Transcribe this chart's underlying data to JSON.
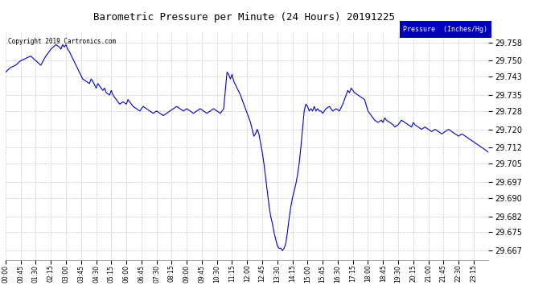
{
  "title": "Barometric Pressure per Minute (24 Hours) 20191225",
  "copyright_text": "Copyright 2019 Cartronics.com",
  "legend_label": "Pressure  (Inches/Hg)",
  "line_color": "#0000cc",
  "legend_bg": "#0000bb",
  "legend_text_color": "#ffffff",
  "bg_color": "#ffffff",
  "grid_color": "#cccccc",
  "y_ticks": [
    29.667,
    29.675,
    29.682,
    29.69,
    29.697,
    29.705,
    29.712,
    29.72,
    29.728,
    29.735,
    29.743,
    29.75,
    29.758
  ],
  "ylim": [
    29.663,
    29.762
  ],
  "x_tick_labels": [
    "00:00",
    "00:45",
    "01:30",
    "02:15",
    "03:00",
    "03:45",
    "04:30",
    "05:15",
    "06:00",
    "06:45",
    "07:30",
    "08:15",
    "09:00",
    "09:45",
    "10:30",
    "11:15",
    "12:00",
    "12:45",
    "13:30",
    "14:15",
    "15:00",
    "15:45",
    "16:30",
    "17:15",
    "18:00",
    "18:45",
    "19:30",
    "20:15",
    "21:00",
    "21:45",
    "22:30",
    "23:15"
  ],
  "x_tick_positions": [
    0,
    45,
    90,
    135,
    180,
    225,
    270,
    315,
    360,
    405,
    450,
    495,
    540,
    585,
    630,
    675,
    720,
    765,
    810,
    855,
    900,
    945,
    990,
    1035,
    1080,
    1125,
    1170,
    1215,
    1260,
    1305,
    1350,
    1395
  ],
  "xlim": [
    0,
    1439
  ],
  "pressure_data": [
    [
      0,
      29.745
    ],
    [
      15,
      29.747
    ],
    [
      30,
      29.748
    ],
    [
      45,
      29.75
    ],
    [
      60,
      29.751
    ],
    [
      75,
      29.752
    ],
    [
      90,
      29.75
    ],
    [
      105,
      29.748
    ],
    [
      120,
      29.752
    ],
    [
      135,
      29.755
    ],
    [
      150,
      29.757
    ],
    [
      160,
      29.756
    ],
    [
      165,
      29.755
    ],
    [
      170,
      29.757
    ],
    [
      175,
      29.756
    ],
    [
      180,
      29.757
    ],
    [
      185,
      29.755
    ],
    [
      190,
      29.754
    ],
    [
      200,
      29.751
    ],
    [
      210,
      29.748
    ],
    [
      220,
      29.745
    ],
    [
      230,
      29.742
    ],
    [
      240,
      29.741
    ],
    [
      250,
      29.74
    ],
    [
      255,
      29.742
    ],
    [
      260,
      29.741
    ],
    [
      270,
      29.738
    ],
    [
      275,
      29.74
    ],
    [
      280,
      29.739
    ],
    [
      290,
      29.737
    ],
    [
      295,
      29.738
    ],
    [
      300,
      29.736
    ],
    [
      310,
      29.735
    ],
    [
      315,
      29.737
    ],
    [
      320,
      29.735
    ],
    [
      330,
      29.733
    ],
    [
      340,
      29.731
    ],
    [
      350,
      29.732
    ],
    [
      360,
      29.731
    ],
    [
      365,
      29.733
    ],
    [
      370,
      29.732
    ],
    [
      380,
      29.73
    ],
    [
      390,
      29.729
    ],
    [
      400,
      29.728
    ],
    [
      410,
      29.73
    ],
    [
      420,
      29.729
    ],
    [
      430,
      29.728
    ],
    [
      440,
      29.727
    ],
    [
      450,
      29.728
    ],
    [
      460,
      29.727
    ],
    [
      470,
      29.726
    ],
    [
      480,
      29.727
    ],
    [
      490,
      29.728
    ],
    [
      500,
      29.729
    ],
    [
      510,
      29.73
    ],
    [
      520,
      29.729
    ],
    [
      530,
      29.728
    ],
    [
      540,
      29.729
    ],
    [
      550,
      29.728
    ],
    [
      560,
      29.727
    ],
    [
      570,
      29.728
    ],
    [
      580,
      29.729
    ],
    [
      590,
      29.728
    ],
    [
      600,
      29.727
    ],
    [
      610,
      29.728
    ],
    [
      620,
      29.729
    ],
    [
      630,
      29.728
    ],
    [
      640,
      29.727
    ],
    [
      650,
      29.729
    ],
    [
      660,
      29.745
    ],
    [
      665,
      29.744
    ],
    [
      670,
      29.742
    ],
    [
      675,
      29.744
    ],
    [
      680,
      29.741
    ],
    [
      690,
      29.738
    ],
    [
      700,
      29.735
    ],
    [
      710,
      29.731
    ],
    [
      720,
      29.727
    ],
    [
      730,
      29.723
    ],
    [
      735,
      29.72
    ],
    [
      740,
      29.717
    ],
    [
      745,
      29.718
    ],
    [
      750,
      29.72
    ],
    [
      755,
      29.718
    ],
    [
      760,
      29.714
    ],
    [
      765,
      29.71
    ],
    [
      770,
      29.705
    ],
    [
      775,
      29.699
    ],
    [
      780,
      29.693
    ],
    [
      785,
      29.687
    ],
    [
      790,
      29.682
    ],
    [
      795,
      29.679
    ],
    [
      800,
      29.675
    ],
    [
      805,
      29.672
    ],
    [
      810,
      29.669
    ],
    [
      815,
      29.668
    ],
    [
      820,
      29.668
    ],
    [
      825,
      29.667
    ],
    [
      830,
      29.668
    ],
    [
      835,
      29.67
    ],
    [
      840,
      29.675
    ],
    [
      845,
      29.681
    ],
    [
      850,
      29.686
    ],
    [
      855,
      29.69
    ],
    [
      860,
      29.693
    ],
    [
      865,
      29.696
    ],
    [
      870,
      29.7
    ],
    [
      875,
      29.705
    ],
    [
      880,
      29.712
    ],
    [
      885,
      29.72
    ],
    [
      890,
      29.728
    ],
    [
      895,
      29.731
    ],
    [
      900,
      29.73
    ],
    [
      905,
      29.728
    ],
    [
      910,
      29.729
    ],
    [
      915,
      29.728
    ],
    [
      920,
      29.73
    ],
    [
      925,
      29.728
    ],
    [
      930,
      29.729
    ],
    [
      935,
      29.728
    ],
    [
      940,
      29.728
    ],
    [
      945,
      29.727
    ],
    [
      955,
      29.729
    ],
    [
      965,
      29.73
    ],
    [
      975,
      29.728
    ],
    [
      985,
      29.729
    ],
    [
      995,
      29.728
    ],
    [
      1005,
      29.731
    ],
    [
      1010,
      29.733
    ],
    [
      1015,
      29.735
    ],
    [
      1020,
      29.737
    ],
    [
      1025,
      29.736
    ],
    [
      1030,
      29.738
    ],
    [
      1035,
      29.737
    ],
    [
      1040,
      29.736
    ],
    [
      1050,
      29.735
    ],
    [
      1060,
      29.734
    ],
    [
      1070,
      29.733
    ],
    [
      1080,
      29.728
    ],
    [
      1090,
      29.726
    ],
    [
      1100,
      29.724
    ],
    [
      1110,
      29.723
    ],
    [
      1120,
      29.724
    ],
    [
      1125,
      29.723
    ],
    [
      1130,
      29.725
    ],
    [
      1135,
      29.724
    ],
    [
      1145,
      29.723
    ],
    [
      1155,
      29.722
    ],
    [
      1160,
      29.721
    ],
    [
      1170,
      29.722
    ],
    [
      1180,
      29.724
    ],
    [
      1190,
      29.723
    ],
    [
      1200,
      29.722
    ],
    [
      1210,
      29.721
    ],
    [
      1215,
      29.723
    ],
    [
      1220,
      29.722
    ],
    [
      1230,
      29.721
    ],
    [
      1240,
      29.72
    ],
    [
      1250,
      29.721
    ],
    [
      1260,
      29.72
    ],
    [
      1270,
      29.719
    ],
    [
      1280,
      29.72
    ],
    [
      1290,
      29.719
    ],
    [
      1300,
      29.718
    ],
    [
      1310,
      29.719
    ],
    [
      1320,
      29.72
    ],
    [
      1330,
      29.719
    ],
    [
      1340,
      29.718
    ],
    [
      1350,
      29.717
    ],
    [
      1360,
      29.718
    ],
    [
      1370,
      29.717
    ],
    [
      1380,
      29.716
    ],
    [
      1390,
      29.715
    ],
    [
      1400,
      29.714
    ],
    [
      1410,
      29.713
    ],
    [
      1420,
      29.712
    ],
    [
      1430,
      29.711
    ],
    [
      1439,
      29.71
    ]
  ]
}
